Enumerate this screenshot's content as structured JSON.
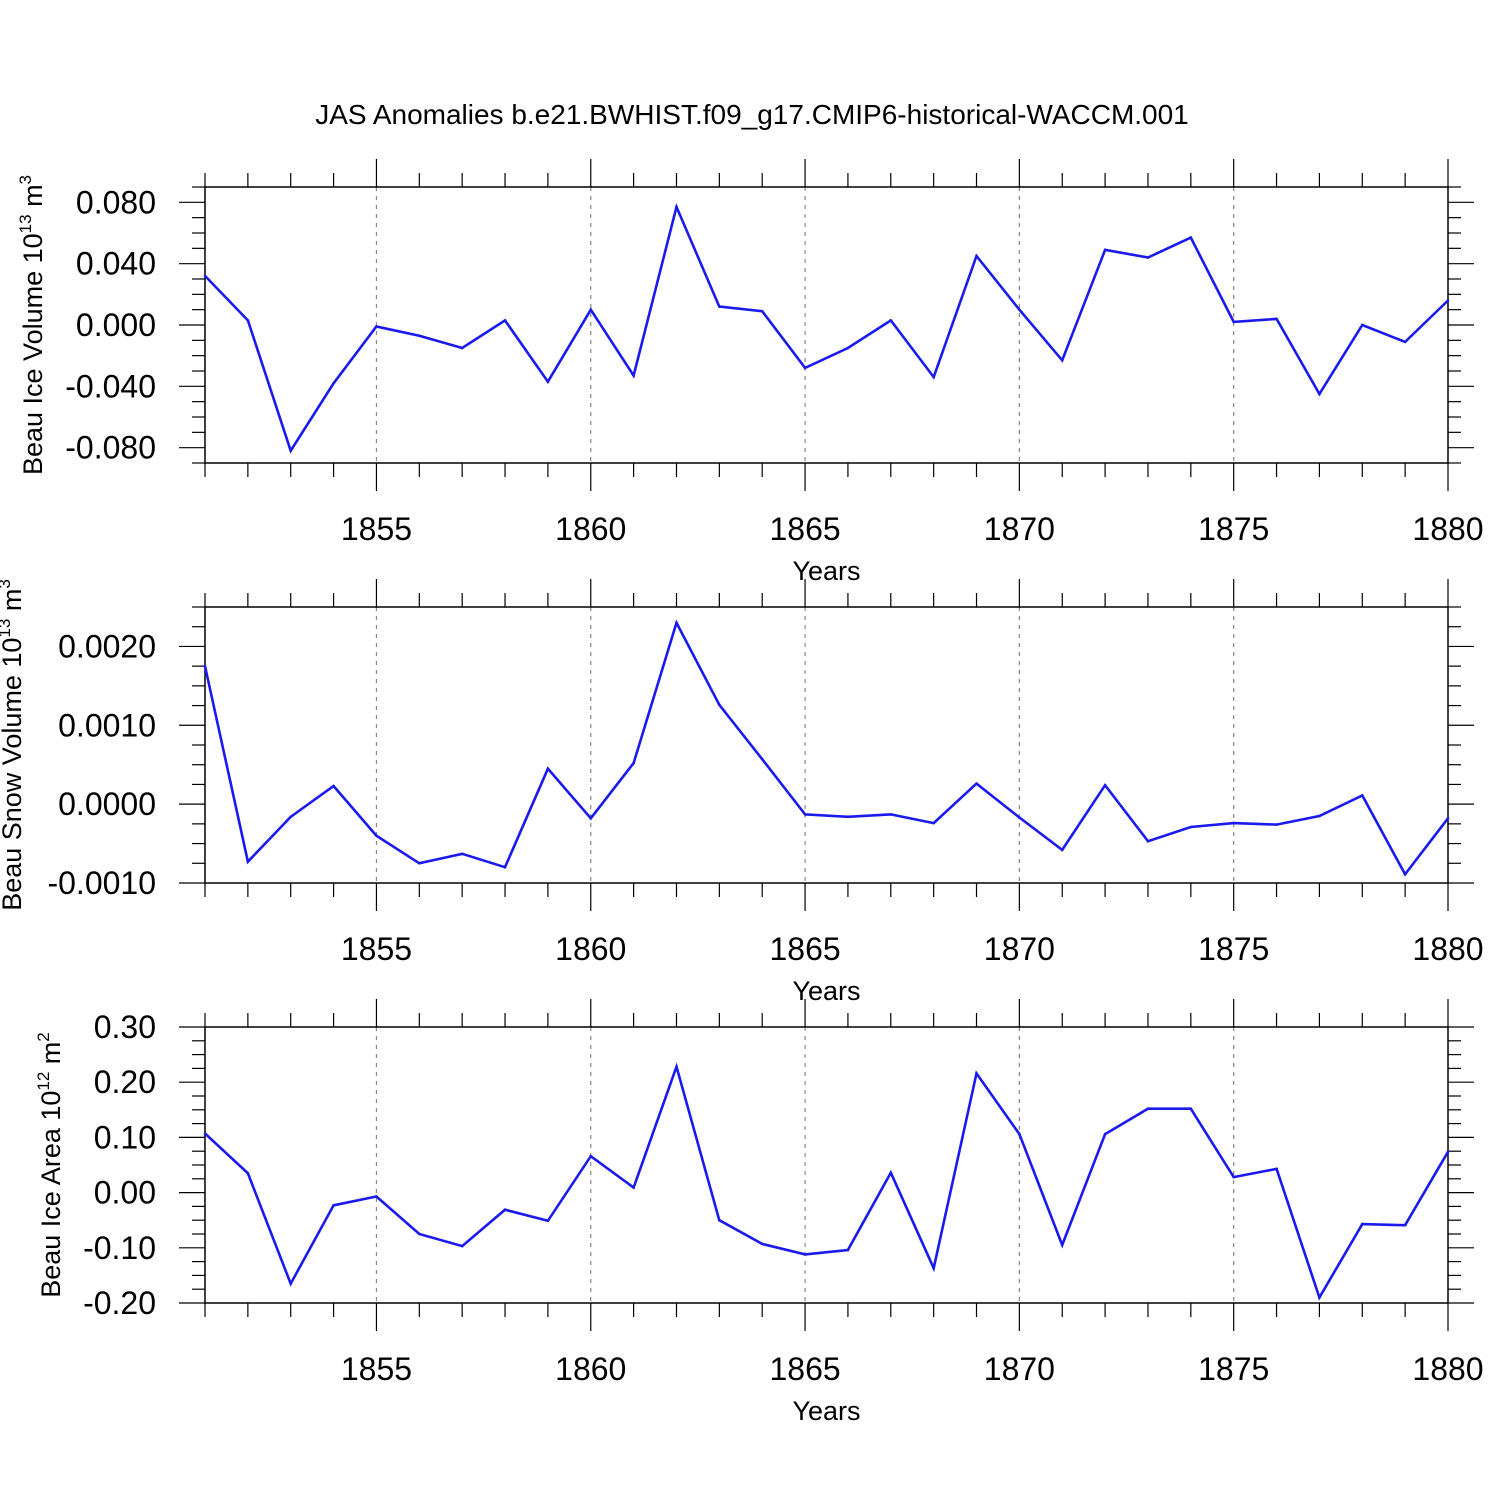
{
  "title": "JAS Anomalies b.e21.BWHIST.f09_g17.CMIP6-historical-WACCM.001",
  "colors": {
    "line": "#1a1aee",
    "axis": "#000000",
    "grid": "#888888"
  },
  "chart_data": [
    {
      "type": "line",
      "ylabel_main": "Beau Ice Volume 10",
      "ylabel_exponent": "13",
      "ylabel_unit": "m",
      "ylabel_unit_exponent": "3",
      "xlabel": "Years",
      "xlim": [
        1851,
        1880
      ],
      "ylim": [
        -0.09,
        0.09
      ],
      "yticks": [
        -0.08,
        -0.04,
        0.0,
        0.04,
        0.08
      ],
      "ytick_labels": [
        "-0.080",
        "-0.040",
        "0.000",
        "0.040",
        "0.080"
      ],
      "xticks": [
        1855,
        1860,
        1865,
        1870,
        1875,
        1880
      ],
      "xtick_labels": [
        "1855",
        "1860",
        "1865",
        "1870",
        "1875",
        "1880"
      ],
      "grid": "vertical dashed at major x ticks",
      "x": [
        1851,
        1852,
        1853,
        1854,
        1855,
        1856,
        1857,
        1858,
        1859,
        1860,
        1861,
        1862,
        1863,
        1864,
        1865,
        1866,
        1867,
        1868,
        1869,
        1870,
        1871,
        1872,
        1873,
        1874,
        1875,
        1876,
        1877,
        1878,
        1879,
        1880
      ],
      "values": [
        0.032,
        0.003,
        -0.082,
        -0.038,
        -0.001,
        -0.007,
        -0.015,
        0.003,
        -0.037,
        0.01,
        -0.033,
        0.077,
        0.012,
        0.009,
        -0.028,
        -0.015,
        0.003,
        -0.034,
        0.045,
        0.01,
        -0.023,
        0.049,
        0.044,
        0.057,
        0.002,
        0.004,
        -0.045,
        0.0,
        -0.011,
        0.016
      ]
    },
    {
      "type": "line",
      "ylabel_main": "Beau Snow Volume 10",
      "ylabel_exponent": "13",
      "ylabel_unit": "m",
      "ylabel_unit_exponent": "3",
      "xlabel": "Years",
      "xlim": [
        1851,
        1880
      ],
      "ylim": [
        -0.001,
        0.0025
      ],
      "yticks": [
        -0.001,
        0.0,
        0.001,
        0.002
      ],
      "ytick_labels": [
        "-0.0010",
        "0.0000",
        "0.0010",
        "0.0020"
      ],
      "xticks": [
        1855,
        1860,
        1865,
        1870,
        1875,
        1880
      ],
      "xtick_labels": [
        "1855",
        "1860",
        "1865",
        "1870",
        "1875",
        "1880"
      ],
      "grid": "vertical dashed at major x ticks",
      "x": [
        1851,
        1852,
        1853,
        1854,
        1855,
        1856,
        1857,
        1858,
        1859,
        1860,
        1861,
        1862,
        1863,
        1864,
        1865,
        1866,
        1867,
        1868,
        1869,
        1870,
        1871,
        1872,
        1873,
        1874,
        1875,
        1876,
        1877,
        1878,
        1879,
        1880
      ],
      "values": [
        0.00175,
        -0.00073,
        -0.00016,
        0.00023,
        -0.0004,
        -0.00075,
        -0.00063,
        -0.0008,
        0.00045,
        -0.00018,
        0.00052,
        0.0023,
        0.00126,
        0.00057,
        -0.00013,
        -0.00016,
        -0.00013,
        -0.00024,
        0.00026,
        -0.00017,
        -0.00058,
        0.00024,
        -0.00047,
        -0.00029,
        -0.00024,
        -0.00026,
        -0.00015,
        0.00011,
        -0.00089,
        -0.00018
      ]
    },
    {
      "type": "line",
      "ylabel_main": "Beau Ice Area 10",
      "ylabel_exponent": "12",
      "ylabel_unit": "m",
      "ylabel_unit_exponent": "2",
      "xlabel": "Years",
      "xlim": [
        1851,
        1880
      ],
      "ylim": [
        -0.2,
        0.3
      ],
      "yticks": [
        -0.2,
        -0.1,
        0.0,
        0.1,
        0.2,
        0.3
      ],
      "ytick_labels": [
        "-0.20",
        "-0.10",
        "0.00",
        "0.10",
        "0.20",
        "0.30"
      ],
      "xticks": [
        1855,
        1860,
        1865,
        1870,
        1875,
        1880
      ],
      "xtick_labels": [
        "1855",
        "1860",
        "1865",
        "1870",
        "1875",
        "1880"
      ],
      "grid": "vertical dashed at major x ticks",
      "x": [
        1851,
        1852,
        1853,
        1854,
        1855,
        1856,
        1857,
        1858,
        1859,
        1860,
        1861,
        1862,
        1863,
        1864,
        1865,
        1866,
        1867,
        1868,
        1869,
        1870,
        1871,
        1872,
        1873,
        1874,
        1875,
        1876,
        1877,
        1878,
        1879,
        1880
      ],
      "values": [
        0.107,
        0.035,
        -0.165,
        -0.023,
        -0.007,
        -0.075,
        -0.097,
        -0.031,
        -0.051,
        0.066,
        0.009,
        0.228,
        -0.05,
        -0.093,
        -0.112,
        -0.104,
        0.036,
        -0.137,
        0.216,
        0.106,
        -0.095,
        0.106,
        0.152,
        0.152,
        0.028,
        0.043,
        -0.19,
        -0.057,
        -0.059,
        0.074
      ]
    }
  ]
}
